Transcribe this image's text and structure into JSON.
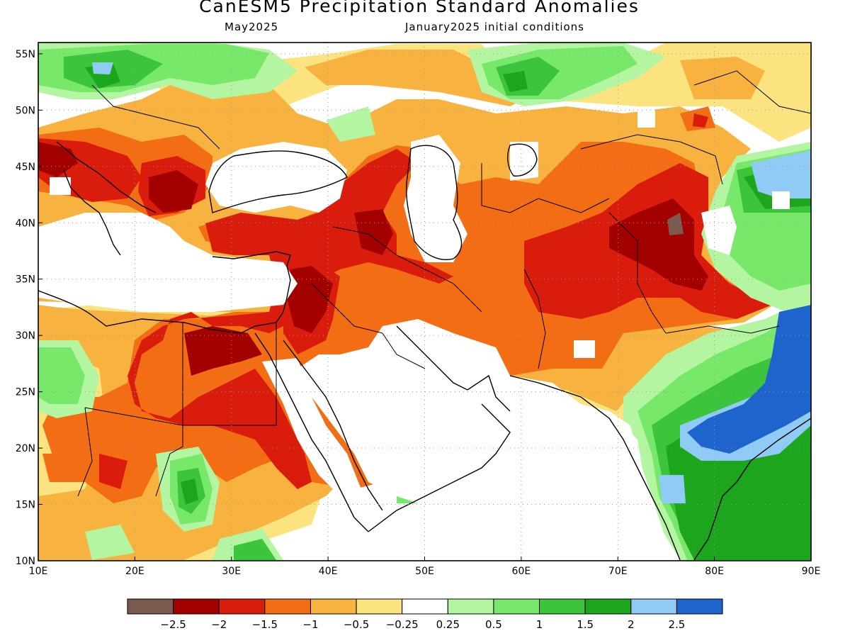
{
  "header": {
    "title": "CanESM5 Precipitation Standard Anomalies",
    "target_month": "May2025",
    "init": "January2025 initial conditions"
  },
  "map": {
    "lon_range": [
      10,
      90
    ],
    "lat_range": [
      10,
      56
    ],
    "lon_ticks": [
      "10E",
      "20E",
      "30E",
      "40E",
      "50E",
      "60E",
      "70E",
      "80E",
      "90E"
    ],
    "lat_ticks": [
      "10N",
      "15N",
      "20N",
      "25N",
      "30N",
      "35N",
      "40N",
      "45N",
      "50N",
      "55N"
    ]
  },
  "colorbar": {
    "colors": [
      "#7a5a4e",
      "#a30000",
      "#d91c0c",
      "#f26d13",
      "#f7b240",
      "#fbe37f",
      "#ffffff",
      "#b4f5a2",
      "#78e86a",
      "#3cc43c",
      "#1ea51e",
      "#8fcbf5",
      "#1f63cc"
    ],
    "labels": [
      "−2.5",
      "−2",
      "−1.5",
      "−1",
      "−0.5",
      "−0.25",
      "0.25",
      "0.5",
      "1",
      "1.5",
      "2",
      "2.5"
    ]
  }
}
